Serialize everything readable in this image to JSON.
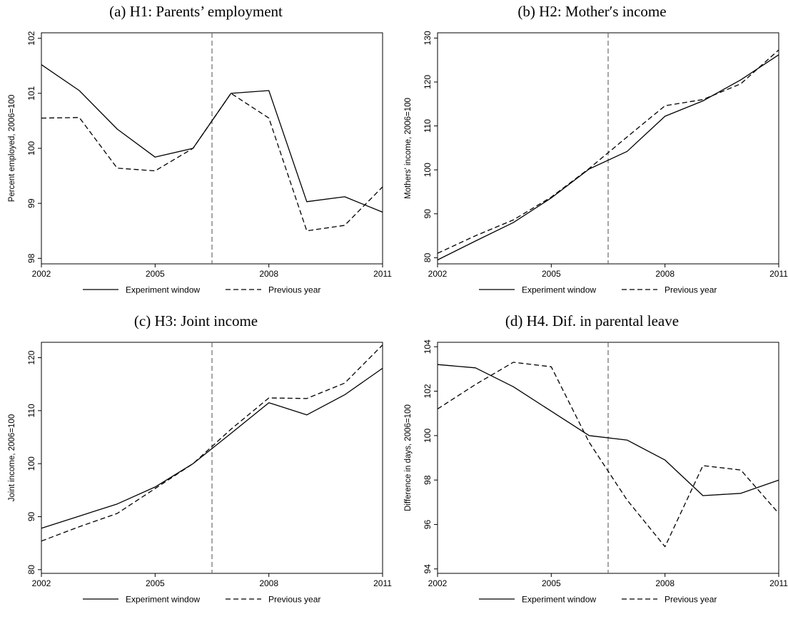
{
  "chart_data": [
    {
      "type": "line",
      "title": "(a) H1: Parents’ employment",
      "ylabel": "Percent employed, 2006=100",
      "xlabel": "",
      "x": [
        2002,
        2003,
        2004,
        2005,
        2006,
        2007,
        2008,
        2009,
        2010,
        2011
      ],
      "xticks": [
        2002,
        2005,
        2008,
        2011
      ],
      "xlim": [
        2002,
        2011
      ],
      "yticks": [
        98,
        99,
        100,
        101,
        102
      ],
      "ylim": [
        97.9,
        102.1
      ],
      "vline_x": 2006.5,
      "series": [
        {
          "name": "Experiment window",
          "style": "solid",
          "values": [
            101.52,
            101.05,
            100.35,
            99.84,
            100.0,
            101.0,
            101.05,
            99.03,
            99.12,
            98.84
          ]
        },
        {
          "name": "Previous year",
          "style": "dashed",
          "values": [
            100.55,
            100.56,
            99.64,
            99.59,
            100.0,
            101.0,
            100.55,
            98.5,
            98.6,
            99.3
          ]
        }
      ],
      "grid": false,
      "legend_position": "bottom"
    },
    {
      "type": "line",
      "title": "(b) H2: Mother′s income",
      "ylabel": "Mothers' income, 2006=100",
      "xlabel": "",
      "x": [
        2002,
        2003,
        2004,
        2005,
        2006,
        2007,
        2008,
        2009,
        2010,
        2011
      ],
      "xticks": [
        2002,
        2005,
        2008,
        2011
      ],
      "xlim": [
        2002,
        2011
      ],
      "yticks": [
        80,
        90,
        100,
        110,
        120,
        130
      ],
      "ylim": [
        78.6,
        131.2
      ],
      "vline_x": 2006.5,
      "series": [
        {
          "name": "Experiment window",
          "style": "solid",
          "values": [
            79.5,
            83.8,
            88.0,
            93.6,
            100.2,
            104.2,
            112.2,
            115.7,
            120.5,
            126.2
          ]
        },
        {
          "name": "Previous year",
          "style": "dashed",
          "values": [
            81.0,
            85.0,
            88.6,
            93.8,
            100.3,
            107.5,
            114.6,
            116.0,
            119.6,
            127.3
          ]
        }
      ],
      "grid": false,
      "legend_position": "bottom"
    },
    {
      "type": "line",
      "title": "(c) H3: Joint income",
      "ylabel": "Joint income, 2006=100",
      "xlabel": "",
      "x": [
        2002,
        2003,
        2004,
        2005,
        2006,
        2007,
        2008,
        2009,
        2010,
        2011
      ],
      "xticks": [
        2002,
        2005,
        2008,
        2011
      ],
      "xlim": [
        2002,
        2011
      ],
      "yticks": [
        80,
        90,
        100,
        110,
        120
      ],
      "ylim": [
        79.3,
        122.9
      ],
      "vline_x": 2006.5,
      "series": [
        {
          "name": "Experiment window",
          "style": "solid",
          "values": [
            87.8,
            90.1,
            92.4,
            95.6,
            100.0,
            105.7,
            111.5,
            109.2,
            113.0,
            118.0
          ]
        },
        {
          "name": "Previous year",
          "style": "dashed",
          "values": [
            85.4,
            88.1,
            90.6,
            95.3,
            100.0,
            106.5,
            112.4,
            112.3,
            115.2,
            122.4
          ]
        }
      ],
      "grid": false,
      "legend_position": "bottom"
    },
    {
      "type": "line",
      "title": "(d) H4. Dif. in parental leave",
      "ylabel": "Difference in days, 2006=100",
      "xlabel": "",
      "x": [
        2002,
        2003,
        2004,
        2005,
        2006,
        2007,
        2008,
        2009,
        2010,
        2011
      ],
      "xticks": [
        2002,
        2005,
        2008,
        2011
      ],
      "xlim": [
        2002,
        2011
      ],
      "yticks": [
        94,
        96,
        98,
        100,
        102,
        104
      ],
      "ylim": [
        93.8,
        104.2
      ],
      "vline_x": 2006.5,
      "series": [
        {
          "name": "Experiment window",
          "style": "solid",
          "values": [
            103.2,
            103.05,
            102.2,
            101.1,
            100.0,
            99.8,
            98.9,
            97.3,
            97.4,
            98.0
          ]
        },
        {
          "name": "Previous year",
          "style": "dashed",
          "values": [
            101.2,
            102.3,
            103.3,
            103.1,
            99.7,
            97.1,
            95.0,
            98.65,
            98.45,
            96.5
          ]
        }
      ],
      "grid": false,
      "legend_position": "bottom"
    }
  ]
}
